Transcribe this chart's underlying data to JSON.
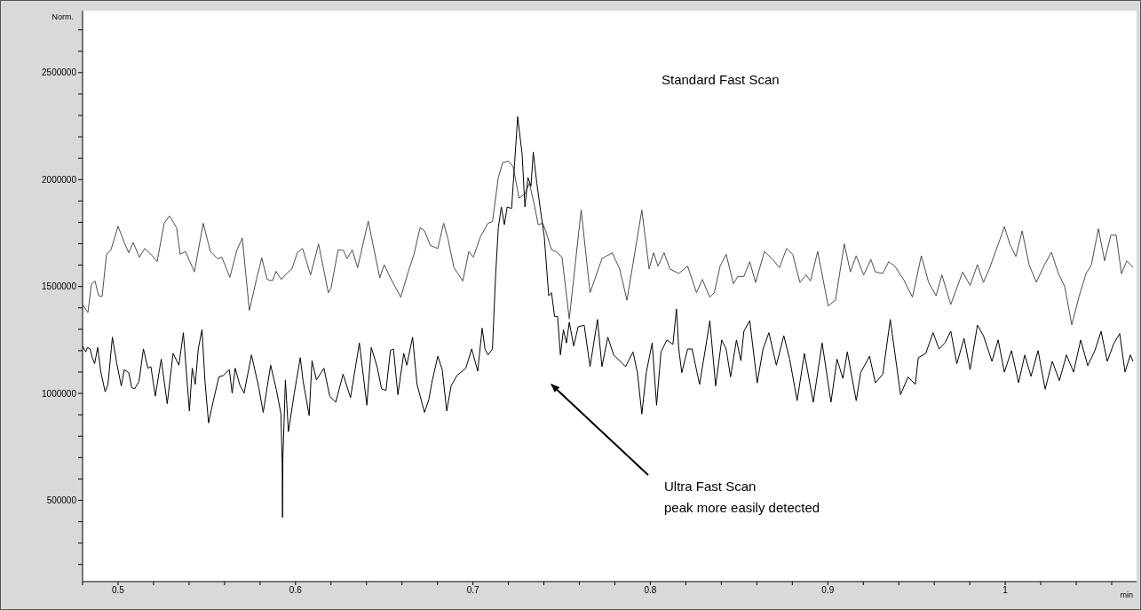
{
  "chart_data": {
    "type": "line",
    "ylabel": "Norm.",
    "xlabel": "min",
    "xlim": [
      0.48,
      1.074
    ],
    "ylim": [
      120000,
      2790000
    ],
    "xticks": [
      {
        "value": 0.48,
        "label": null
      },
      0.5,
      {
        "value": 0.52,
        "label": null
      },
      {
        "value": 0.54,
        "label": null
      },
      {
        "value": 0.56,
        "label": null
      },
      {
        "value": 0.58,
        "label": null
      },
      0.6,
      {
        "value": 0.62,
        "label": null
      },
      {
        "value": 0.64,
        "label": null
      },
      {
        "value": 0.66,
        "label": null
      },
      {
        "value": 0.68,
        "label": null
      },
      0.7,
      {
        "value": 0.72,
        "label": null
      },
      {
        "value": 0.74,
        "label": null
      },
      {
        "value": 0.76,
        "label": null
      },
      {
        "value": 0.78,
        "label": null
      },
      0.8,
      {
        "value": 0.82,
        "label": null
      },
      {
        "value": 0.84,
        "label": null
      },
      {
        "value": 0.86,
        "label": null
      },
      {
        "value": 0.88,
        "label": null
      },
      0.9,
      {
        "value": 0.92,
        "label": null
      },
      {
        "value": 0.94,
        "label": null
      },
      {
        "value": 0.96,
        "label": null
      },
      {
        "value": 0.98,
        "label": null
      },
      1,
      {
        "value": 1.02,
        "label": null
      },
      {
        "value": 1.04,
        "label": null
      },
      {
        "value": 1.06,
        "label": null
      }
    ],
    "yticks": [
      {
        "value": 200000,
        "label": null
      },
      {
        "value": 300000,
        "label": null
      },
      {
        "value": 400000,
        "label": null
      },
      500000,
      {
        "value": 600000,
        "label": null
      },
      {
        "value": 700000,
        "label": null
      },
      {
        "value": 800000,
        "label": null
      },
      {
        "value": 900000,
        "label": null
      },
      1000000,
      {
        "value": 1100000,
        "label": null
      },
      {
        "value": 1200000,
        "label": null
      },
      {
        "value": 1300000,
        "label": null
      },
      {
        "value": 1400000,
        "label": null
      },
      1500000,
      {
        "value": 1600000,
        "label": null
      },
      {
        "value": 1700000,
        "label": null
      },
      {
        "value": 1800000,
        "label": null
      },
      {
        "value": 1900000,
        "label": null
      },
      2000000,
      {
        "value": 2100000,
        "label": null
      },
      {
        "value": 2200000,
        "label": null
      },
      {
        "value": 2300000,
        "label": null
      },
      {
        "value": 2400000,
        "label": null
      },
      2500000,
      {
        "value": 2600000,
        "label": null
      },
      {
        "value": 2700000,
        "label": null
      }
    ],
    "annotations": [
      "Ultra Fast Scan\npeak more easily detected"
    ],
    "series": [
      {
        "name": "Standard Fast Scan",
        "color": "#4d4d4d",
        "x": [
          0.48,
          0.483,
          0.485,
          0.487,
          0.489,
          0.491,
          0.4935,
          0.496,
          0.5,
          0.5035,
          0.506,
          0.5085,
          0.512,
          0.515,
          0.5185,
          0.522,
          0.526,
          0.529,
          0.533,
          0.535,
          0.538,
          0.543,
          0.548,
          0.552,
          0.556,
          0.5585,
          0.563,
          0.567,
          0.57,
          0.574,
          0.578,
          0.581,
          0.584,
          0.587,
          0.589,
          0.592,
          0.595,
          0.598,
          0.601,
          0.604,
          0.6085,
          0.613,
          0.6185,
          0.62,
          0.624,
          0.627,
          0.629,
          0.632,
          0.635,
          0.641,
          0.6475,
          0.65,
          0.6535,
          0.6593,
          0.6635,
          0.6668,
          0.6702,
          0.6727,
          0.676,
          0.6802,
          0.6835,
          0.686,
          0.6893,
          0.6943,
          0.6977,
          0.7002,
          0.7043,
          0.7085,
          0.711,
          0.7143,
          0.7168,
          0.7202,
          0.7227,
          0.726,
          0.7293,
          0.7318,
          0.7343,
          0.7368,
          0.7393,
          0.741,
          0.7443,
          0.7468,
          0.7502,
          0.7543,
          0.761,
          0.766,
          0.7727,
          0.7785,
          0.7827,
          0.7868,
          0.7952,
          0.7993,
          0.8018,
          0.8043,
          0.8077,
          0.811,
          0.816,
          0.821,
          0.826,
          0.8293,
          0.8335,
          0.836,
          0.8393,
          0.8427,
          0.8468,
          0.8493,
          0.8527,
          0.856,
          0.8593,
          0.8643,
          0.8693,
          0.8727,
          0.8768,
          0.8802,
          0.8843,
          0.8877,
          0.8902,
          0.8943,
          0.9002,
          0.9043,
          0.9093,
          0.9127,
          0.916,
          0.9202,
          0.9243,
          0.9268,
          0.931,
          0.9343,
          0.9377,
          0.9427,
          0.9477,
          0.9527,
          0.9568,
          0.961,
          0.9643,
          0.9693,
          0.976,
          0.9802,
          0.9843,
          0.9877,
          0.991,
          0.9935,
          0.997,
          0.9995,
          1.0025,
          1.006,
          1.0095,
          1.0135,
          1.0175,
          1.022,
          1.026,
          1.03,
          1.0335,
          1.0375,
          1.0415,
          1.0455,
          1.0485,
          1.0525,
          1.056,
          1.0595,
          1.0625,
          1.0655,
          1.0685,
          1.072
        ],
        "values": [
          1415000,
          1378000,
          1512000,
          1526000,
          1457000,
          1453000,
          1651000,
          1671000,
          1782000,
          1706000,
          1658000,
          1706000,
          1637000,
          1678000,
          1651000,
          1616000,
          1796000,
          1830000,
          1775000,
          1651000,
          1664000,
          1568000,
          1796000,
          1664000,
          1630000,
          1637000,
          1543000,
          1671000,
          1727000,
          1388000,
          1533000,
          1634000,
          1533000,
          1526000,
          1571000,
          1533000,
          1561000,
          1582000,
          1658000,
          1678000,
          1554000,
          1699000,
          1471000,
          1492000,
          1671000,
          1669000,
          1630000,
          1671000,
          1588000,
          1806000,
          1540000,
          1602000,
          1540000,
          1450000,
          1568000,
          1651000,
          1775000,
          1761000,
          1692000,
          1678000,
          1796000,
          1720000,
          1588000,
          1526000,
          1664000,
          1637000,
          1734000,
          1796000,
          1803000,
          2010000,
          2080000,
          2086000,
          2059000,
          1913000,
          1934000,
          1983000,
          1893000,
          1789000,
          1796000,
          1761000,
          1671000,
          1664000,
          1637000,
          1348000,
          1858000,
          1471000,
          1630000,
          1658000,
          1582000,
          1436000,
          1858000,
          1582000,
          1658000,
          1595000,
          1658000,
          1582000,
          1561000,
          1595000,
          1471000,
          1533000,
          1450000,
          1471000,
          1595000,
          1651000,
          1512000,
          1547000,
          1547000,
          1616000,
          1519000,
          1664000,
          1623000,
          1588000,
          1678000,
          1651000,
          1519000,
          1554000,
          1526000,
          1664000,
          1409000,
          1436000,
          1699000,
          1568000,
          1644000,
          1554000,
          1626000,
          1568000,
          1561000,
          1616000,
          1595000,
          1533000,
          1450000,
          1644000,
          1519000,
          1457000,
          1554000,
          1416000,
          1568000,
          1505000,
          1602000,
          1519000,
          1582000,
          1640000,
          1720000,
          1780000,
          1700000,
          1640000,
          1760000,
          1600000,
          1520000,
          1600000,
          1660000,
          1560000,
          1500000,
          1320000,
          1450000,
          1560000,
          1600000,
          1770000,
          1620000,
          1740000,
          1740000,
          1560000,
          1620000,
          1590000
        ]
      },
      {
        "color": "#000000",
        "x": [
          0.48,
          0.4818,
          0.4827,
          0.4843,
          0.4852,
          0.4868,
          0.4885,
          0.4902,
          0.4927,
          0.4943,
          0.4968,
          0.4993,
          0.5018,
          0.5035,
          0.506,
          0.5077,
          0.5093,
          0.5118,
          0.5143,
          0.5168,
          0.5185,
          0.521,
          0.5243,
          0.5277,
          0.531,
          0.5343,
          0.5368,
          0.5402,
          0.5418,
          0.5435,
          0.5452,
          0.5473,
          0.549,
          0.551,
          0.5535,
          0.5568,
          0.5593,
          0.5627,
          0.5643,
          0.566,
          0.5685,
          0.571,
          0.5752,
          0.5793,
          0.5818,
          0.586,
          0.5893,
          0.5918,
          0.5925,
          0.5927,
          0.5929,
          0.5943,
          0.596,
          0.5993,
          0.6027,
          0.6043,
          0.6077,
          0.6093,
          0.6118,
          0.616,
          0.6193,
          0.6227,
          0.6268,
          0.631,
          0.636,
          0.6402,
          0.6427,
          0.646,
          0.6485,
          0.651,
          0.6535,
          0.6552,
          0.6577,
          0.661,
          0.6627,
          0.666,
          0.6685,
          0.6727,
          0.6752,
          0.6768,
          0.6802,
          0.6827,
          0.6852,
          0.6877,
          0.691,
          0.696,
          0.6993,
          0.7027,
          0.7052,
          0.7068,
          0.7085,
          0.711,
          0.7127,
          0.7143,
          0.716,
          0.7177,
          0.7193,
          0.7218,
          0.7235,
          0.7252,
          0.7277,
          0.7293,
          0.731,
          0.7327,
          0.734,
          0.736,
          0.7385,
          0.7402,
          0.7427,
          0.7443,
          0.746,
          0.7477,
          0.7493,
          0.751,
          0.7527,
          0.7543,
          0.7568,
          0.7593,
          0.7627,
          0.766,
          0.7702,
          0.7727,
          0.776,
          0.7793,
          0.7827,
          0.786,
          0.7902,
          0.7927,
          0.7952,
          0.7977,
          0.801,
          0.8035,
          0.806,
          0.8093,
          0.8127,
          0.8147,
          0.816,
          0.8177,
          0.821,
          0.8235,
          0.8277,
          0.831,
          0.8335,
          0.8368,
          0.8402,
          0.8427,
          0.8452,
          0.8485,
          0.851,
          0.8527,
          0.856,
          0.8602,
          0.8635,
          0.8668,
          0.871,
          0.8752,
          0.8785,
          0.8827,
          0.8868,
          0.8918,
          0.8968,
          0.9018,
          0.9052,
          0.9085,
          0.911,
          0.916,
          0.9185,
          0.9235,
          0.9268,
          0.931,
          0.9352,
          0.941,
          0.9452,
          0.9493,
          0.951,
          0.9552,
          0.9593,
          0.9627,
          0.966,
          0.9693,
          0.9727,
          0.9768,
          0.9802,
          0.9843,
          0.9877,
          0.9902,
          0.9925,
          0.996,
          0.9995,
          1.0035,
          1.0075,
          1.011,
          1.0145,
          1.0185,
          1.0225,
          1.0265,
          1.0305,
          1.0345,
          1.0385,
          1.0425,
          1.0465,
          1.0505,
          1.054,
          1.0575,
          1.061,
          1.0645,
          1.0675,
          1.0705,
          1.072
        ],
        "values": [
          1222000,
          1194000,
          1215000,
          1208000,
          1174000,
          1139000,
          1215000,
          1104000,
          1008000,
          1042000,
          1263000,
          1139000,
          1035000,
          1111000,
          1097000,
          1028000,
          1021000,
          1056000,
          1208000,
          1118000,
          1125000,
          987000,
          1160000,
          952000,
          1187000,
          1132000,
          1284000,
          918000,
          1118000,
          1042000,
          1208000,
          1298000,
          1056000,
          862000,
          959000,
          1077000,
          1084000,
          1111000,
          1001000,
          1118000,
          1042000,
          1001000,
          1180000,
          1028000,
          911000,
          1132000,
          1014000,
          904000,
          669000,
          420000,
          696000,
          1063000,
          821000,
          1001000,
          1167000,
          1056000,
          897000,
          1153000,
          1063000,
          1118000,
          987000,
          959000,
          1090000,
          980000,
          1236000,
          945000,
          1215000,
          1125000,
          1021000,
          1014000,
          1201000,
          1208000,
          994000,
          1187000,
          1132000,
          1263000,
          1042000,
          911000,
          973000,
          1049000,
          1174000,
          1111000,
          918000,
          1035000,
          1084000,
          1118000,
          1208000,
          1104000,
          1305000,
          1208000,
          1180000,
          1208000,
          1540000,
          1775000,
          1872000,
          1789000,
          1872000,
          1865000,
          2080000,
          2294000,
          2121000,
          1872000,
          2010000,
          1969000,
          2128000,
          1983000,
          1831000,
          1734000,
          1457000,
          1471000,
          1360000,
          1360000,
          1180000,
          1298000,
          1236000,
          1333000,
          1222000,
          1312000,
          1319000,
          1125000,
          1346000,
          1125000,
          1263000,
          1180000,
          1153000,
          1125000,
          1194000,
          1097000,
          904000,
          1097000,
          1236000,
          945000,
          1194000,
          1250000,
          1229000,
          1395000,
          1208000,
          1097000,
          1208000,
          1208000,
          1042000,
          1208000,
          1340000,
          1035000,
          1250000,
          1208000,
          1077000,
          1250000,
          1153000,
          1291000,
          1340000,
          1049000,
          1208000,
          1284000,
          1132000,
          1270000,
          1160000,
          966000,
          1187000,
          959000,
          1236000,
          959000,
          1160000,
          1070000,
          1194000,
          966000,
          1097000,
          1174000,
          1049000,
          1090000,
          1346000,
          994000,
          1077000,
          1042000,
          1167000,
          1187000,
          1284000,
          1208000,
          1236000,
          1291000,
          1139000,
          1257000,
          1111000,
          1319000,
          1270000,
          1208000,
          1150000,
          1250000,
          1100000,
          1200000,
          1050000,
          1180000,
          1080000,
          1200000,
          1020000,
          1150000,
          1060000,
          1180000,
          1100000,
          1250000,
          1130000,
          1200000,
          1290000,
          1150000,
          1230000,
          1280000,
          1100000,
          1180000,
          1150000
        ]
      }
    ]
  }
}
